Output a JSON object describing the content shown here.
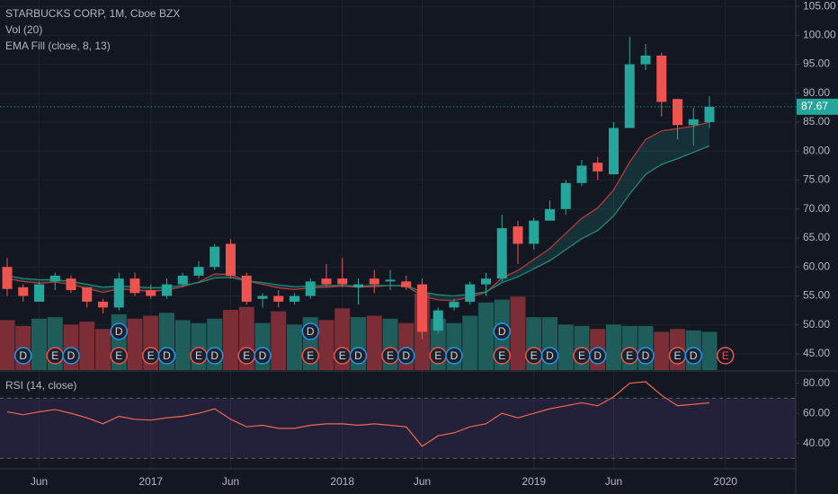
{
  "chart_data": {
    "type": "candlestick",
    "title": "STARBUCKS CORP, 1M, Cboe BZX",
    "indicators": [
      "Vol (20)",
      "EMA Fill (close, 8, 13)"
    ],
    "categories": [
      null,
      null,
      "Jun",
      null,
      null,
      null,
      null,
      null,
      null,
      "2017",
      null,
      null,
      null,
      null,
      "Jun",
      null,
      null,
      null,
      null,
      null,
      null,
      "2018",
      null,
      null,
      null,
      null,
      "Jun",
      null,
      null,
      null,
      null,
      null,
      null,
      "2019",
      null,
      null,
      null,
      null,
      "Jun",
      null,
      null,
      null,
      null,
      null,
      null,
      "2020"
    ],
    "open": [
      60,
      56.5,
      54,
      57.5,
      58,
      56.5,
      54,
      53,
      58,
      56,
      55,
      57,
      58.5,
      60,
      64,
      58.5,
      54.5,
      55,
      54,
      55,
      58,
      58,
      56.5,
      58,
      57.5,
      57.5,
      57,
      49,
      53,
      54,
      57,
      58,
      67,
      64,
      68,
      70,
      74.5,
      78,
      76,
      84,
      95,
      96.5,
      89,
      84.5,
      85,
      null
    ],
    "high": [
      61.5,
      57,
      57.5,
      59,
      58.5,
      56.5,
      54.5,
      59,
      59,
      57,
      58,
      59,
      61,
      64,
      64.8,
      59,
      55.5,
      56,
      55.5,
      58,
      60.5,
      61.5,
      58,
      59.5,
      59.5,
      58.5,
      58,
      53,
      54.5,
      57.5,
      59,
      69,
      68,
      68.5,
      71.5,
      75,
      78.5,
      79,
      85,
      99.7,
      98.5,
      97,
      89,
      87.5,
      89.5,
      null
    ],
    "low": [
      55,
      54,
      54,
      56,
      55.5,
      53,
      52,
      52.5,
      55,
      54.5,
      54.5,
      56.5,
      58,
      59.5,
      58,
      53.5,
      53,
      53,
      53.5,
      54.5,
      56.5,
      56.5,
      53.5,
      55.5,
      56,
      56,
      47.5,
      48.5,
      52.5,
      53.5,
      55,
      57.5,
      60.5,
      63,
      68,
      69,
      74,
      75,
      76,
      84,
      94,
      86,
      82,
      81,
      84,
      null
    ],
    "close": [
      56.2,
      55,
      57,
      58.5,
      56,
      54,
      53,
      58,
      55.5,
      55,
      57,
      58.5,
      60,
      63.5,
      58.5,
      54,
      55,
      54,
      55,
      57.5,
      57,
      57,
      57,
      57,
      57.8,
      56.5,
      48.8,
      52.5,
      54,
      57,
      58,
      66.7,
      64,
      68,
      70,
      74.5,
      77.5,
      76.5,
      84,
      95,
      96.5,
      88.5,
      84.5,
      85.5,
      87.67,
      null
    ],
    "up_color": "#26a69a",
    "down_color": "#ef5350",
    "volume": [
      170,
      150,
      175,
      180,
      155,
      165,
      140,
      190,
      175,
      185,
      195,
      170,
      160,
      175,
      205,
      215,
      160,
      200,
      155,
      180,
      170,
      210,
      180,
      185,
      175,
      160,
      260,
      175,
      160,
      185,
      230,
      240,
      250,
      180,
      180,
      155,
      150,
      140,
      155,
      150,
      150,
      130,
      140,
      135,
      130,
      null
    ],
    "volume_up_color": "#1e5d5a",
    "volume_down_color": "#7b2e35",
    "ema_fast": {
      "color": "#b23a3a",
      "values": [
        58,
        57.5,
        57.2,
        57.4,
        57,
        56.3,
        55.6,
        56.2,
        56,
        55.8,
        56,
        56.6,
        57.4,
        58.8,
        58.7,
        57.6,
        57,
        56.4,
        56.1,
        56.4,
        56.5,
        56.7,
        56.5,
        56.6,
        56.8,
        56.7,
        55,
        54.3,
        54.2,
        54.8,
        55.6,
        58.1,
        59.4,
        61.3,
        63.2,
        65.8,
        68.4,
        70.2,
        73.3,
        78.1,
        82,
        83.5,
        83.9,
        84.3,
        85,
        null
      ]
    },
    "ema_slow": {
      "color": "#1e8a78",
      "values": [
        58.5,
        58,
        57.8,
        57.8,
        57.5,
        57,
        56.5,
        56.7,
        56.6,
        56.4,
        56.5,
        56.8,
        57.3,
        58.1,
        58.2,
        57.6,
        57.3,
        56.9,
        56.6,
        56.7,
        56.8,
        56.8,
        56.7,
        56.8,
        56.8,
        56.8,
        55.7,
        55.2,
        55,
        55.3,
        55.7,
        57.3,
        58.3,
        59.7,
        61.1,
        63,
        64.9,
        66.3,
        68.8,
        72.6,
        76,
        77.7,
        78.7,
        79.8,
        80.9,
        null
      ]
    },
    "events": [
      {
        "label": "D",
        "at": 1
      },
      {
        "label": "E",
        "at": 3
      },
      {
        "label": "D",
        "at": 4
      },
      {
        "label": "E",
        "at": 7
      },
      {
        "label": "D",
        "at": 7
      },
      {
        "label": "E",
        "at": 9
      },
      {
        "label": "D",
        "at": 10
      },
      {
        "label": "E",
        "at": 12
      },
      {
        "label": "D",
        "at": 13
      },
      {
        "label": "E",
        "at": 15
      },
      {
        "label": "D",
        "at": 16
      },
      {
        "label": "E",
        "at": 19
      },
      {
        "label": "D",
        "at": 19
      },
      {
        "label": "E",
        "at": 21
      },
      {
        "label": "D",
        "at": 22
      },
      {
        "label": "E",
        "at": 24
      },
      {
        "label": "D",
        "at": 25
      },
      {
        "label": "E",
        "at": 27
      },
      {
        "label": "D",
        "at": 28
      },
      {
        "label": "E",
        "at": 31
      },
      {
        "label": "D",
        "at": 31
      },
      {
        "label": "E",
        "at": 33
      },
      {
        "label": "D",
        "at": 34
      },
      {
        "label": "E",
        "at": 36
      },
      {
        "label": "D",
        "at": 37
      },
      {
        "label": "E",
        "at": 39
      },
      {
        "label": "D",
        "at": 40
      },
      {
        "label": "E",
        "at": 42
      },
      {
        "label": "D",
        "at": 43
      },
      {
        "label": "E",
        "at": 45
      }
    ],
    "ylim": [
      42.2,
      106.1
    ],
    "yticks": [
      {
        "value": 45,
        "label": "45.00"
      },
      {
        "value": 50,
        "label": "50.00"
      },
      {
        "value": 55,
        "label": "55.00"
      },
      {
        "value": 60,
        "label": "60.00"
      },
      {
        "value": 65,
        "label": "65.00"
      },
      {
        "value": 70,
        "label": "70.00"
      },
      {
        "value": 75,
        "label": "75.00"
      },
      {
        "value": 80,
        "label": "80.00"
      },
      {
        "value": 85,
        "label": "85.00"
      },
      {
        "value": 90,
        "label": "90.00"
      },
      {
        "value": 95,
        "label": "95.00"
      },
      {
        "value": 100,
        "label": "100.00"
      },
      {
        "value": 105,
        "label": "105.00"
      }
    ],
    "grid": true,
    "rsi": {
      "title": "RSI (14, close)",
      "color": "#f0674f",
      "values": [
        61,
        59,
        61,
        62.5,
        60,
        57,
        53,
        58,
        56,
        55.5,
        57,
        58,
        60,
        63,
        56,
        51,
        52,
        50,
        50,
        52,
        53,
        53,
        52,
        53,
        52,
        51,
        38,
        45,
        47,
        51,
        53,
        60,
        57,
        60,
        63,
        65,
        67,
        65,
        71,
        80,
        81,
        72,
        65,
        66,
        67,
        null
      ],
      "ylim": [
        23,
        87
      ],
      "band": [
        30,
        70
      ],
      "yticks": [
        {
          "value": 40,
          "label": "40.00"
        },
        {
          "value": 60,
          "label": "60.00"
        },
        {
          "value": 80,
          "label": "80.00"
        }
      ]
    }
  }
}
